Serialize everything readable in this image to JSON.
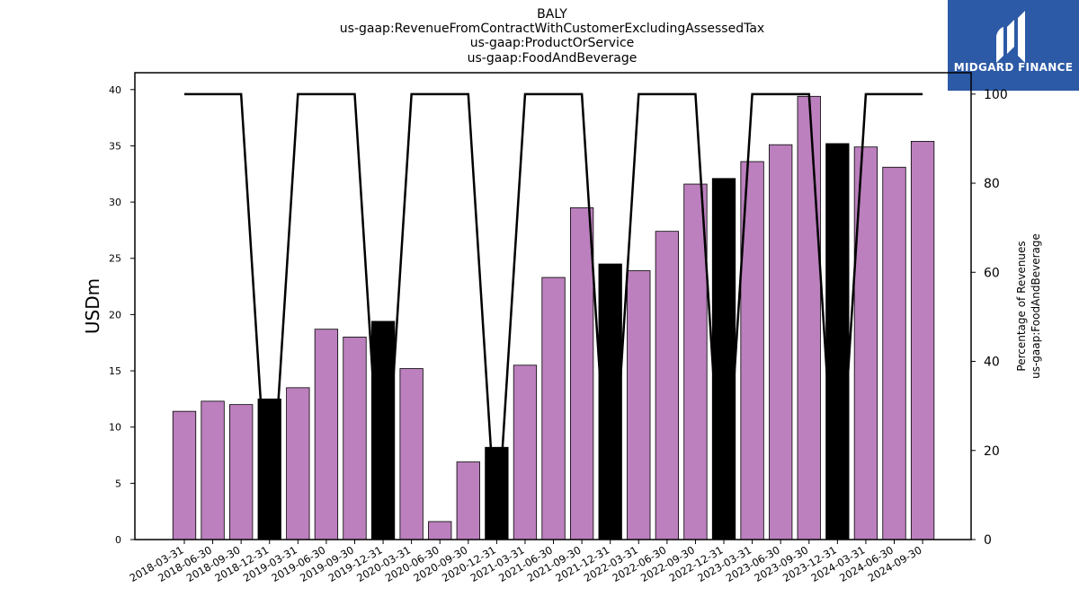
{
  "header": {
    "ticker": "BALY",
    "concept": "us-gaap:RevenueFromContractWithCustomerExcludingAssessedTax",
    "axis": "us-gaap:ProductOrService",
    "member": "us-gaap:FoodAndBeverage"
  },
  "logo": {
    "text": "MIDGARD FINANCE",
    "bg_color": "#2c5aa6"
  },
  "chart_data": {
    "type": "bar",
    "categories": [
      "2018-03-31",
      "2018-06-30",
      "2018-09-30",
      "2018-12-31",
      "2019-03-31",
      "2019-06-30",
      "2019-09-30",
      "2019-12-31",
      "2020-03-31",
      "2020-06-30",
      "2020-09-30",
      "2020-12-31",
      "2021-03-31",
      "2021-06-30",
      "2021-09-30",
      "2021-12-31",
      "2022-03-31",
      "2022-06-30",
      "2022-09-30",
      "2022-12-31",
      "2023-03-31",
      "2023-06-30",
      "2023-09-30",
      "2023-12-31",
      "2024-03-31",
      "2024-06-30",
      "2024-09-30"
    ],
    "series": [
      {
        "values": [
          11.4,
          12.3,
          12.0,
          12.5,
          13.5,
          18.7,
          18.0,
          19.4,
          15.2,
          1.6,
          6.9,
          8.2,
          15.5,
          23.3,
          29.5,
          24.5,
          23.9,
          27.4,
          31.6,
          32.1,
          33.6,
          35.1,
          39.4,
          35.2,
          34.9,
          33.1,
          35.4
        ],
        "axis": "left"
      },
      {
        "values": [
          100,
          100,
          100,
          0,
          100,
          100,
          100,
          0,
          100,
          100,
          100,
          0,
          100,
          100,
          100,
          0,
          100,
          100,
          100,
          0,
          100,
          100,
          100,
          0,
          100,
          100,
          100
        ],
        "axis": "right",
        "type": "line"
      }
    ],
    "highlight_categories": [
      "2018-12-31",
      "2019-12-31",
      "2020-12-31",
      "2021-12-31",
      "2022-12-31",
      "2023-12-31"
    ],
    "colors": {
      "bar": "#bb80bd",
      "bar_highlight": "#000000",
      "line": "#000000"
    },
    "ylabel": "USDm",
    "ylabel_right": "Percentage of Revenues\nus-gaap:FoodAndBeverage",
    "ylim": [
      0,
      41.5
    ],
    "ylim_right": [
      0,
      104.8
    ],
    "yticks": [
      0,
      5,
      10,
      15,
      20,
      25,
      30,
      35,
      40
    ],
    "yticks_right": [
      0,
      20,
      40,
      60,
      80,
      100
    ]
  }
}
